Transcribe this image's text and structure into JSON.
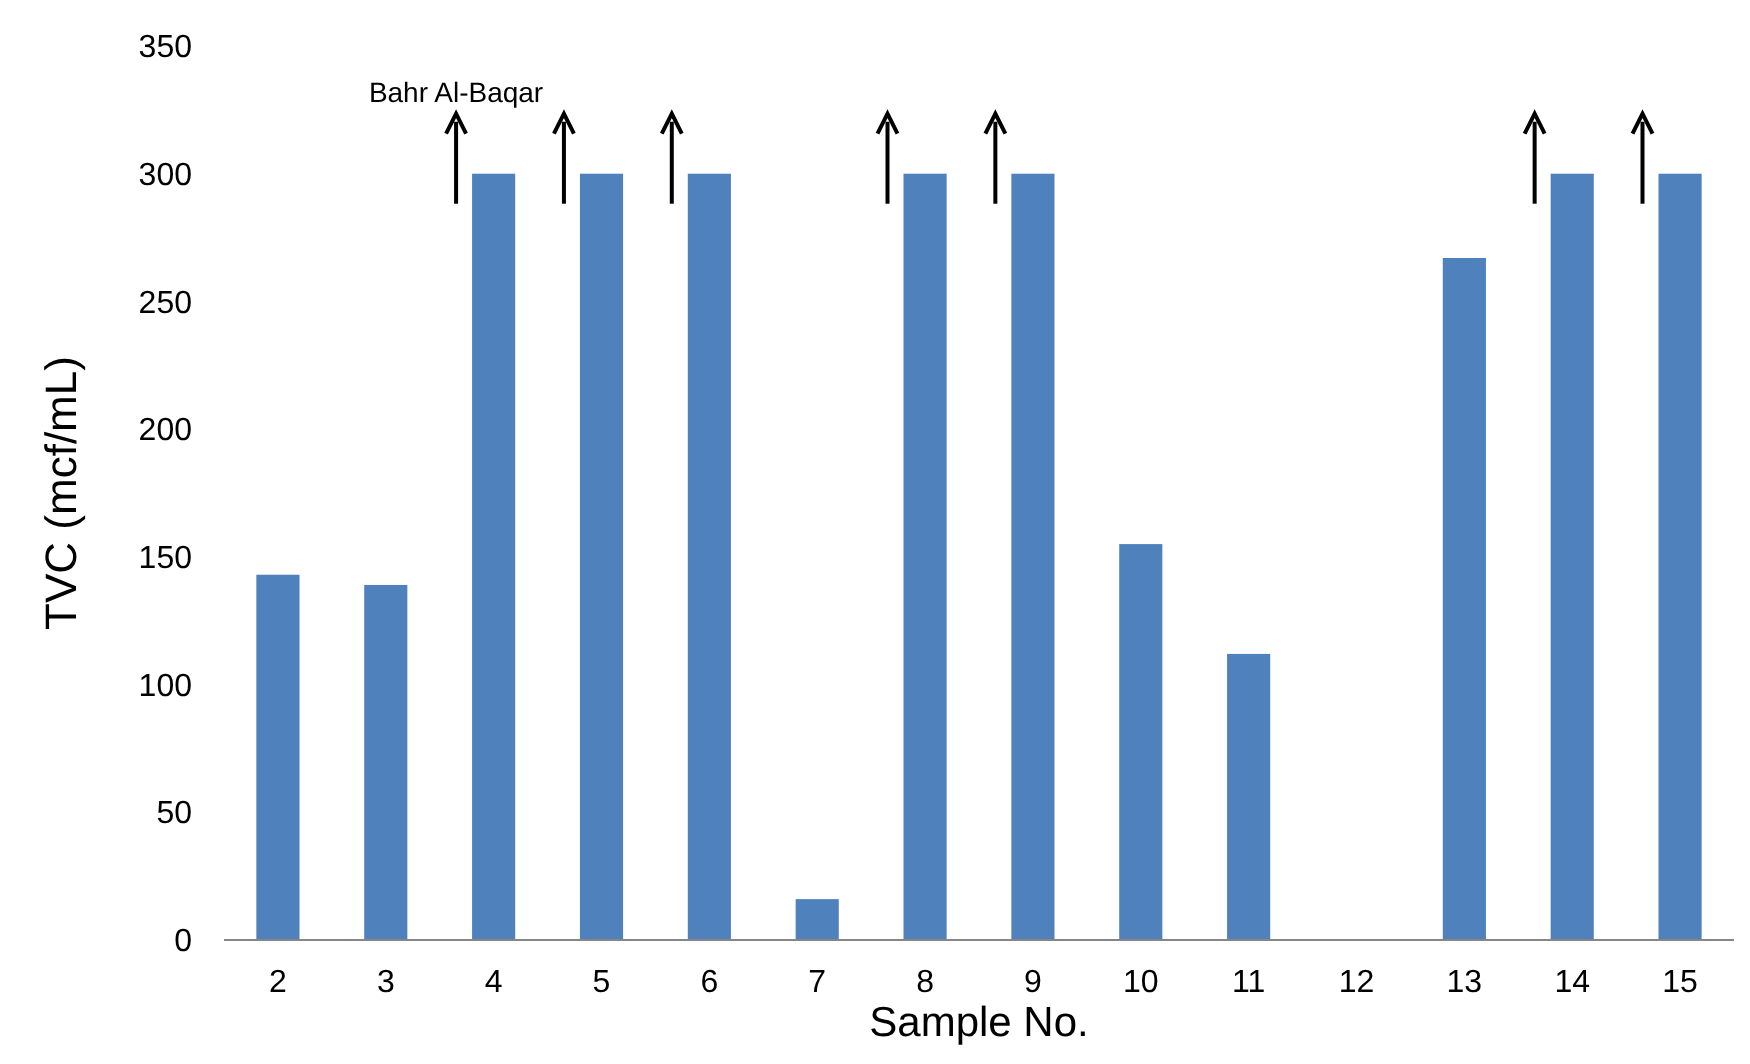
{
  "chart_data": {
    "type": "bar",
    "xlabel": "Sample No.",
    "ylabel": "TVC (mcf/mL)",
    "categories": [
      "2",
      "3",
      "4",
      "5",
      "6",
      "7",
      "8",
      "9",
      "10",
      "11",
      "12",
      "13",
      "14",
      "15"
    ],
    "values": [
      143,
      139,
      300,
      300,
      300,
      16,
      300,
      300,
      155,
      112,
      0,
      267,
      300,
      300
    ],
    "color": "#4f81bd",
    "ylim": [
      0,
      350
    ],
    "yticks": [
      0,
      50,
      100,
      150,
      200,
      250,
      300,
      350
    ],
    "grid": false,
    "annotations": [
      "Bahr Al-Baqar"
    ]
  }
}
